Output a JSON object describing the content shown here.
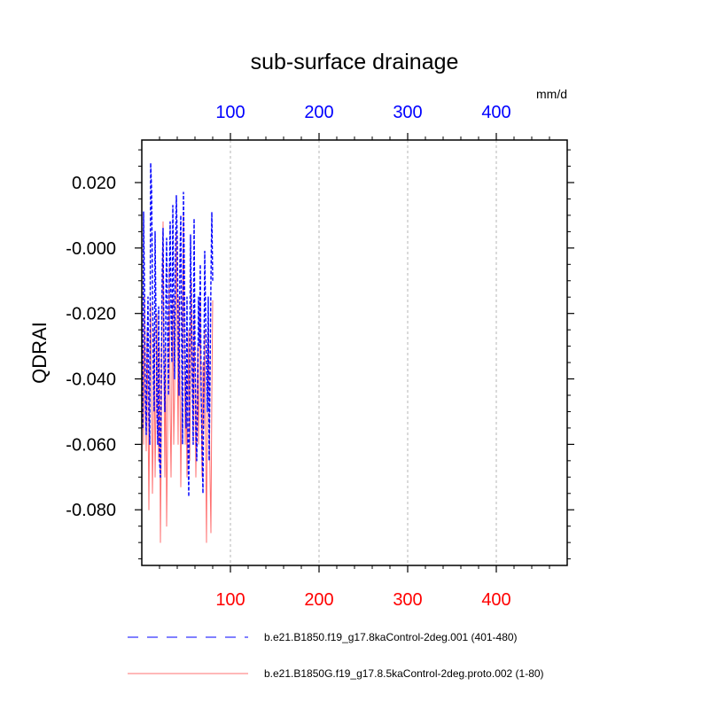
{
  "colors": {
    "background": "#ffffff",
    "axis": "#000000",
    "grid": "#b4b4b4",
    "series1": "#0000ff",
    "series2": "#ff7070",
    "top_tick_labels": "#0000ff",
    "bottom_tick_labels": "#ff0000"
  },
  "chart_data": {
    "type": "line",
    "title": "sub-surface drainage",
    "ylabel": "QDRAI",
    "units": "mm/d",
    "xlim": [
      0,
      480
    ],
    "ylim": [
      -0.097,
      0.033
    ],
    "grid": "vertical dashed lines at x=100,200,300,400",
    "legend_placement": "bottom",
    "x_ticks": [
      100,
      200,
      300,
      400
    ],
    "x_tick_labels": [
      "100",
      "200",
      "300",
      "400"
    ],
    "y_ticks": [
      0.02,
      0.0,
      -0.02,
      -0.04,
      -0.06,
      -0.08
    ],
    "y_tick_labels": [
      "0.020",
      "-0.000",
      "-0.020",
      "-0.040",
      "-0.060",
      "-0.080"
    ],
    "series": [
      {
        "name": "b.e21.B1850.f19_g17.8kaControl-2deg.001 (401-480)",
        "style": "dashed",
        "x": [
          1,
          2,
          3,
          4,
          5,
          6,
          7,
          8,
          9,
          10,
          11,
          12,
          13,
          14,
          15,
          16,
          17,
          18,
          19,
          20,
          21,
          22,
          23,
          24,
          25,
          26,
          27,
          28,
          29,
          30,
          31,
          32,
          33,
          34,
          35,
          36,
          37,
          38,
          39,
          40,
          41,
          42,
          43,
          44,
          45,
          46,
          47,
          48,
          49,
          50,
          51,
          52,
          53,
          54,
          55,
          56,
          57,
          58,
          59,
          60,
          61,
          62,
          63,
          64,
          65,
          66,
          67,
          68,
          69,
          70,
          71,
          72,
          73,
          74,
          75,
          76,
          77,
          78,
          79,
          80
        ],
        "values": [
          -0.055,
          0.011,
          -0.012,
          -0.046,
          -0.057,
          -0.03,
          -0.015,
          -0.05,
          -0.06,
          0.026,
          0.018,
          -0.01,
          -0.038,
          -0.05,
          0.005,
          -0.022,
          -0.045,
          -0.06,
          -0.018,
          -0.065,
          -0.07,
          -0.04,
          -0.008,
          0.006,
          -0.035,
          -0.05,
          -0.02,
          0.003,
          -0.025,
          -0.045,
          -0.01,
          0.008,
          -0.02,
          -0.035,
          0.013,
          -0.015,
          -0.04,
          -0.003,
          0.016,
          0.002,
          -0.025,
          -0.045,
          -0.005,
          0.01,
          -0.03,
          -0.06,
          0.017,
          -0.007,
          -0.04,
          -0.055,
          -0.015,
          -0.06,
          -0.076,
          -0.035,
          0.004,
          -0.02,
          -0.04,
          -0.06,
          0.009,
          -0.03,
          -0.055,
          -0.065,
          -0.045,
          -0.015,
          -0.03,
          -0.005,
          -0.045,
          -0.06,
          -0.075,
          -0.04,
          -0.001,
          -0.02,
          -0.035,
          -0.05,
          -0.015,
          -0.065,
          -0.04,
          -0.01,
          0.011,
          -0.01
        ]
      },
      {
        "name": "b.e21.B1850G.f19_g17.8.5kaControl-2deg.proto.002 (1-80)",
        "style": "solid",
        "x": [
          1,
          2,
          3,
          4,
          5,
          6,
          7,
          8,
          9,
          10,
          11,
          12,
          13,
          14,
          15,
          16,
          17,
          18,
          19,
          20,
          21,
          22,
          23,
          24,
          25,
          26,
          27,
          28,
          29,
          30,
          31,
          32,
          33,
          34,
          35,
          36,
          37,
          38,
          39,
          40,
          41,
          42,
          43,
          44,
          45,
          46,
          47,
          48,
          49,
          50,
          51,
          52,
          53,
          54,
          55,
          56,
          57,
          58,
          59,
          60,
          61,
          62,
          63,
          64,
          65,
          66,
          67,
          68,
          69,
          70,
          71,
          72,
          73,
          74,
          75,
          76,
          77,
          78,
          79,
          80
        ],
        "values": [
          -0.03,
          -0.06,
          -0.015,
          -0.045,
          -0.062,
          -0.025,
          -0.05,
          -0.08,
          -0.045,
          -0.017,
          -0.04,
          -0.075,
          -0.055,
          -0.025,
          -0.07,
          -0.05,
          -0.02,
          -0.045,
          -0.065,
          -0.03,
          -0.09,
          -0.06,
          -0.02,
          0.008,
          -0.04,
          -0.07,
          -0.03,
          -0.085,
          -0.06,
          -0.03,
          -0.005,
          -0.05,
          -0.07,
          -0.04,
          -0.015,
          -0.06,
          -0.045,
          -0.02,
          0.005,
          -0.03,
          -0.06,
          -0.015,
          -0.04,
          -0.073,
          -0.05,
          -0.02,
          0.01,
          -0.03,
          -0.06,
          -0.04,
          -0.07,
          -0.05,
          -0.025,
          -0.065,
          -0.04,
          -0.01,
          -0.035,
          -0.06,
          -0.02,
          -0.045,
          -0.07,
          -0.05,
          -0.03,
          -0.06,
          -0.04,
          -0.015,
          -0.05,
          -0.07,
          -0.035,
          -0.055,
          -0.025,
          -0.06,
          -0.09,
          -0.05,
          -0.02,
          -0.045,
          -0.07,
          -0.087,
          -0.045,
          -0.016
        ]
      }
    ]
  }
}
